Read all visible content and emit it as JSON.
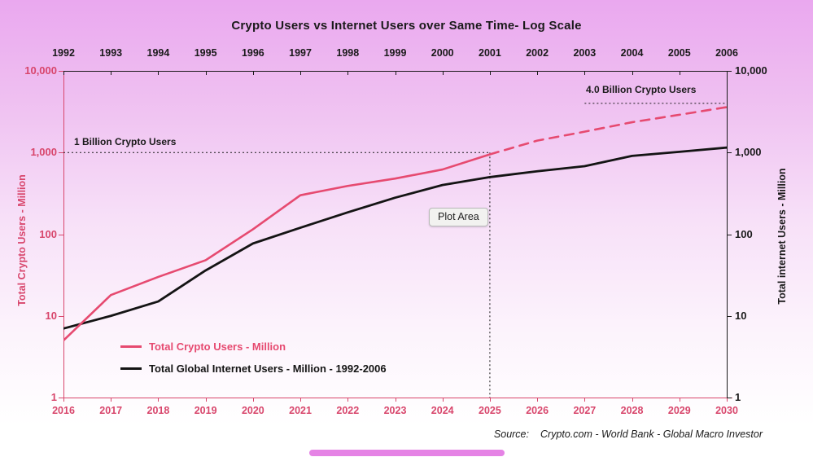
{
  "title": "Crypto Users vs Internet Users over Same Time- Log Scale",
  "colors": {
    "crypto_pink": "#e64a70",
    "axis_pink": "#d8466c",
    "internet_black": "#141414",
    "annotation_black": "#1a1a1a",
    "background_top": "#eaa8ef",
    "background_bottom": "#ffffff"
  },
  "axes": {
    "left_title": "Total Crypto Users - Million",
    "right_title": "Total internet Users - Million",
    "y_tick_labels": [
      "10,000",
      "1,000",
      "100",
      "10",
      "1"
    ],
    "y_tick_values": [
      10000,
      1000,
      100,
      10,
      1
    ],
    "top_years": [
      "1992",
      "1993",
      "1994",
      "1995",
      "1996",
      "1997",
      "1998",
      "1999",
      "2000",
      "2001",
      "2002",
      "2003",
      "2004",
      "2005",
      "2006"
    ],
    "bottom_years": [
      "2016",
      "2017",
      "2018",
      "2019",
      "2020",
      "2021",
      "2022",
      "2023",
      "2024",
      "2025",
      "2026",
      "2027",
      "2028",
      "2029",
      "2030"
    ]
  },
  "annotations": {
    "one_billion": "1 Billion Crypto Users",
    "four_billion": "4.0 Billion Crypto Users",
    "plot_area_tooltip": "Plot Area"
  },
  "legend": [
    {
      "label": "Total Crypto Users - Million",
      "color": "#e64a70"
    },
    {
      "label": "Total Global Internet Users - Million - 1992-2006",
      "color": "#141414"
    }
  ],
  "source": {
    "label": "Source:",
    "text": "Crypto.com - World Bank - Global Macro Investor"
  },
  "chart_data": {
    "type": "line",
    "title": "Crypto Users vs Internet Users over Same Time- Log Scale",
    "y_scale": "log",
    "ylim": [
      1,
      10000
    ],
    "grid": "off",
    "legend_position": "inside-bottom-left",
    "dual_x_axes": {
      "top": [
        1992,
        2006
      ],
      "bottom": [
        2016,
        2030
      ]
    },
    "series": [
      {
        "name": "Total Crypto Users - Million",
        "axis": "bottom",
        "style": "solid",
        "color": "#e64a70",
        "x": [
          2016,
          2017,
          2018,
          2019,
          2020,
          2021,
          2022,
          2023,
          2024,
          2025
        ],
        "values": [
          5,
          18,
          30,
          48,
          115,
          300,
          390,
          480,
          620,
          950
        ]
      },
      {
        "name": "Total Crypto Users - Million (projected)",
        "axis": "bottom",
        "style": "dashed",
        "color": "#e64a70",
        "x": [
          2025,
          2026,
          2027,
          2028,
          2029,
          2030
        ],
        "values": [
          950,
          1400,
          1800,
          2350,
          2900,
          3600
        ]
      },
      {
        "name": "Total Global Internet Users - Million - 1992-2006",
        "axis": "top",
        "style": "solid",
        "color": "#141414",
        "x": [
          1992,
          1993,
          1994,
          1995,
          1996,
          1997,
          1998,
          1999,
          2000,
          2001,
          2002,
          2003,
          2004,
          2005,
          2006
        ],
        "values": [
          7,
          10,
          15,
          36,
          77,
          120,
          185,
          280,
          400,
          500,
          590,
          680,
          910,
          1020,
          1150
        ]
      }
    ],
    "annotations": [
      {
        "type": "hline",
        "label": "1 Billion Crypto Users",
        "value": 1000,
        "x_start_year": 2016,
        "x_end_year": 2025,
        "axis": "bottom"
      },
      {
        "type": "hline",
        "label": "4.0 Billion Crypto Users",
        "value": 4000,
        "x_start_year": 2027,
        "x_end_year": 2030,
        "axis": "bottom"
      },
      {
        "type": "vline",
        "year": 2025,
        "axis": "bottom",
        "from_value": 1000,
        "to_value": 1
      }
    ]
  }
}
